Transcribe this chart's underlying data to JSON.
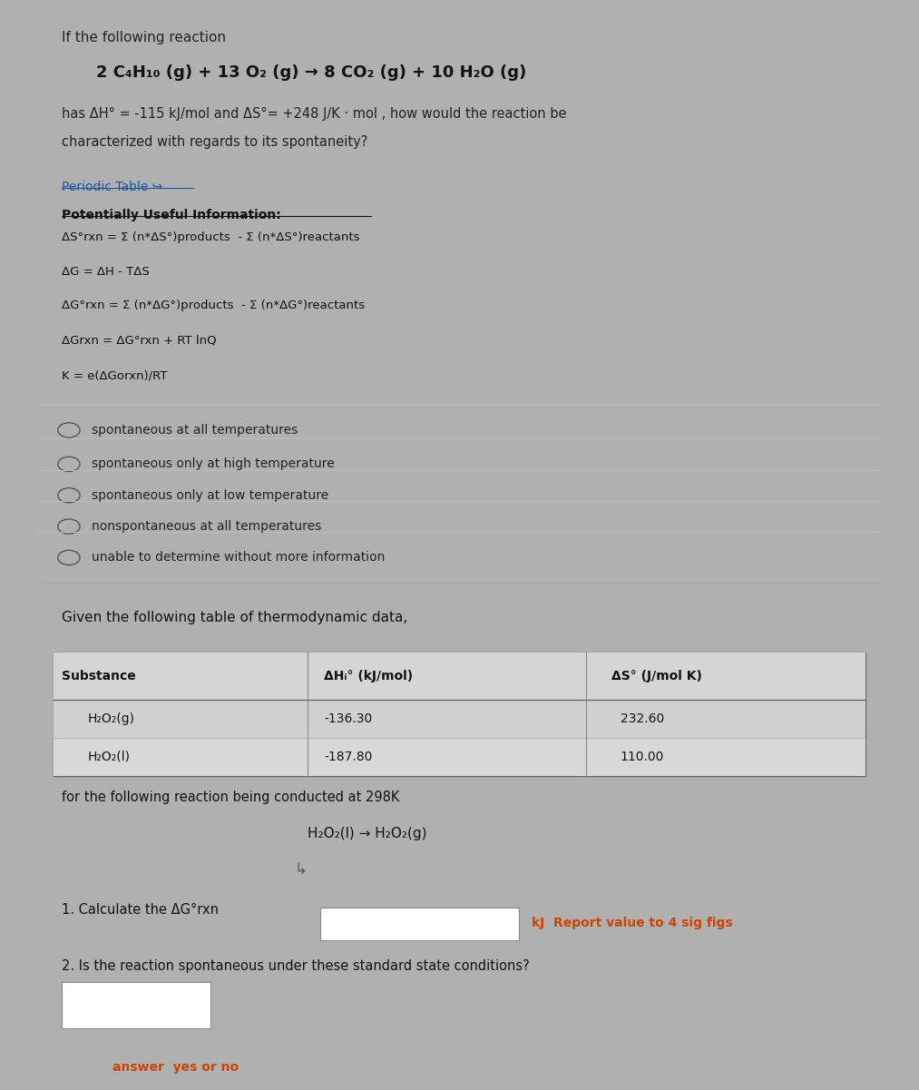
{
  "bg_color_page": "#b0b0b0",
  "bg_color_panel1": "#ebebeb",
  "bg_color_panel2": "#e8e8e8",
  "title_text": "If the following reaction",
  "reaction": "2 C₄H₁₀ (g) + 13 O₂ (g) → 8 CO₂ (g) + 10 H₂O (g)",
  "condition_line1": "has ΔH° = -115 kJ/mol and ΔS°= +248 J/K · mol , how would the reaction be",
  "condition_line2": "characterized with regards to its spontaneity?",
  "periodic_table_link": "Periodic Table ↪",
  "useful_info_header": "Potentially Useful Information:",
  "formula1": "ΔS°rxn = Σ (n*ΔS°)products  - Σ (n*ΔS°)reactants",
  "formula2": "ΔG = ΔH - TΔS",
  "formula3": "ΔG°rxn = Σ (n*ΔG°)products  - Σ (n*ΔG°)reactants",
  "formula4": "ΔGrxn = ΔG°rxn + RT lnQ",
  "formula5": "K = e(ΔGorxn)/RT",
  "choices": [
    "spontaneous at all temperatures",
    "spontaneous only at high temperature",
    "spontaneous only at low temperature",
    "nonspontaneous at all temperatures",
    "unable to determine without more information"
  ],
  "section2_intro": "Given the following table of thermodynamic data,",
  "table_headers": [
    "Substance",
    "ΔHᵢ° (kJ/mol)",
    "ΔS° (J/mol K)"
  ],
  "table_row1_sub": "H₂O₂(g)",
  "table_row1_dH": "-136.30",
  "table_row1_dS": "232.60",
  "table_row2_sub": "H₂O₂(l)",
  "table_row2_dH": "-187.80",
  "table_row2_dS": "110.00",
  "reaction2_text": "for the following reaction being conducted at 298K",
  "reaction2": "H₂O₂(l) → H₂O₂(g)",
  "q1_text": "1. Calculate the ΔG°rxn",
  "q1_unit": "kJ  Report value to 4 sig figs",
  "q2_text": "2. Is the reaction spontaneous under these standard state conditions?",
  "answer_label": "answer  yes or no"
}
